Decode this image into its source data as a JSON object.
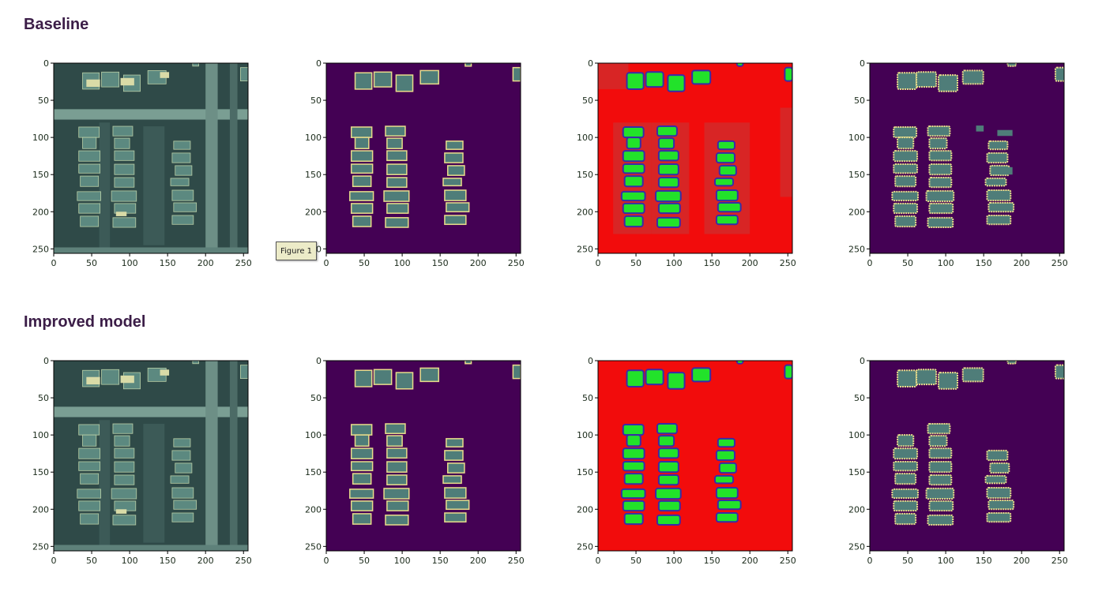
{
  "sections": [
    {
      "title": "Baseline"
    },
    {
      "title": "Improved model"
    }
  ],
  "axis_ticks": {
    "x": [
      "0",
      "50",
      "100",
      "150",
      "200",
      "250"
    ],
    "y": [
      "0",
      "50",
      "100",
      "150",
      "200",
      "250"
    ],
    "range": [
      0,
      256
    ]
  },
  "panel_types": [
    "aerial-image",
    "ground-truth-mask",
    "error-overlay",
    "predicted-mask"
  ],
  "colors": {
    "background": "#440154",
    "building_fill": "#4f7d79",
    "building_edge": "#e8dc8a",
    "error_red": "#f20c0c",
    "correct_green": "#22e22a",
    "edge_blue": "#3a2aa8",
    "aerial_base": "#2f4a48",
    "aerial_roof": "#5c8980"
  },
  "tooltip": {
    "label": "Figure 1"
  }
}
